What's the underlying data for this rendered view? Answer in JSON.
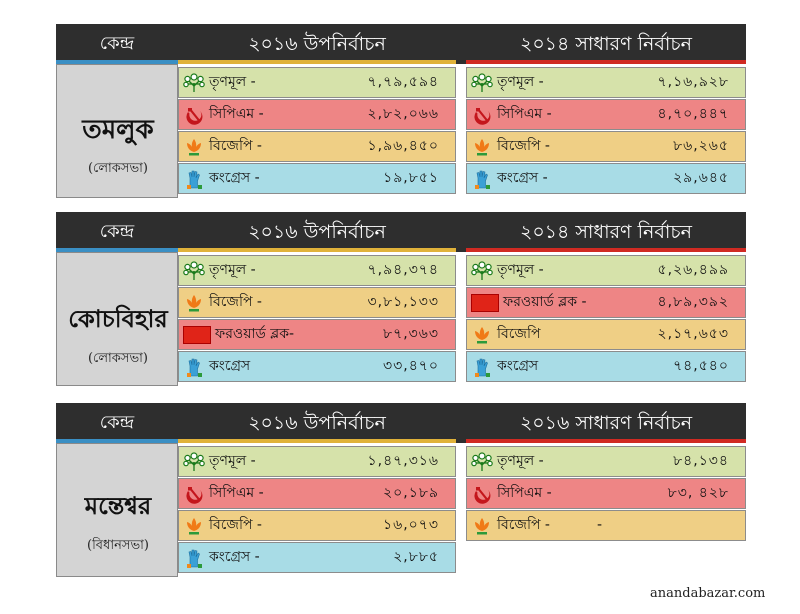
{
  "sections": [
    {
      "center_label": "কেন্দ্র",
      "col1_title": "২০১৬ উপনির্বাচন",
      "col2_title": "২০১৪ সাধারণ নির্বাচন",
      "name": "তমলুক",
      "sub": "(লোকসভা)",
      "col1": [
        {
          "party": "তৃণমূল -",
          "votes": "৭,৭৯,৫৯৪",
          "icon": "trinamool-flower-icon"
        },
        {
          "party": "সিপিএম -",
          "votes": "২,৮২,০৬৬",
          "icon": "hammer-sickle-icon"
        },
        {
          "party": "বিজেপি -",
          "votes": "১,৯৬,৪৫০",
          "icon": "lotus-icon"
        },
        {
          "party": "কংগ্রেস -",
          "votes": "১৯,৮৫১",
          "icon": "hand-icon"
        }
      ],
      "col2": [
        {
          "party": "তৃণমূল -",
          "votes": "৭,১৬,৯২৮",
          "icon": "trinamool-flower-icon"
        },
        {
          "party": "সিপিএম -",
          "votes": "৪,৭০,৪৪৭",
          "icon": "hammer-sickle-icon"
        },
        {
          "party": "বিজেপি -",
          "votes": "৮৬,২৬৫",
          "icon": "lotus-icon"
        },
        {
          "party": "কংগ্রেস -",
          "votes": "২৯,৬৪৫",
          "icon": "hand-icon"
        }
      ]
    },
    {
      "center_label": "কেন্দ্র",
      "col1_title": "২০১৬ উপনির্বাচন",
      "col2_title": "২০১৪ সাধারণ নির্বাচন",
      "name": "কোচবিহার",
      "sub": "(লোকসভা)",
      "col1": [
        {
          "party": "তৃণমূল -",
          "votes": "৭,৯৪,৩৭৪",
          "icon": "trinamool-flower-icon"
        },
        {
          "party": "বিজেপি -",
          "votes": "৩,৮১,১৩৩",
          "icon": "lotus-icon"
        },
        {
          "party": "ফরওয়ার্ড ব্লক-",
          "votes": "৮৭,৩৬৩",
          "icon": "forward-bloc-tiger-icon"
        },
        {
          "party": "কংগ্রেস",
          "votes": "৩৩,৪৭০",
          "icon": "hand-icon"
        }
      ],
      "col2": [
        {
          "party": "তৃণমূল -",
          "votes": "৫,২৬,৪৯৯",
          "icon": "trinamool-flower-icon"
        },
        {
          "party": "ফরওয়ার্ড ব্লক -",
          "votes": "৪,৮৯,৩৯২",
          "icon": "forward-bloc-tiger-icon"
        },
        {
          "party": "বিজেপি",
          "votes": "২,১৭,৬৫৩",
          "icon": "lotus-icon"
        },
        {
          "party": "কংগ্রেস",
          "votes": "৭৪,৫৪০",
          "icon": "hand-icon"
        }
      ]
    },
    {
      "center_label": "কেন্দ্র",
      "col1_title": "২০১৬ উপনির্বাচন",
      "col2_title": "২০১৬ সাধারণ নির্বাচন",
      "name": "মন্তেশ্বর",
      "sub": "(বিধানসভা)",
      "col1": [
        {
          "party": "তৃণমূল -",
          "votes": "১,৪৭,৩১৬",
          "icon": "trinamool-flower-icon"
        },
        {
          "party": "সিপিএম -",
          "votes": "২০,১৮৯",
          "icon": "hammer-sickle-icon"
        },
        {
          "party": "বিজেপি -",
          "votes": "১৬,০৭৩",
          "icon": "lotus-icon"
        },
        {
          "party": "কংগ্রেস -",
          "votes": "২,৮৮৫",
          "icon": "hand-icon"
        }
      ],
      "col2": [
        {
          "party": "তৃণমূল -",
          "votes": "৮৪,১৩৪",
          "icon": "trinamool-flower-icon"
        },
        {
          "party": "সিপিএম -",
          "votes": "৮৩, ৪২৮",
          "icon": "hammer-sickle-icon"
        },
        {
          "party": "বিজেপি -",
          "votes": "-",
          "icon": "lotus-icon"
        }
      ]
    }
  ],
  "credit": "anandabazar.com"
}
